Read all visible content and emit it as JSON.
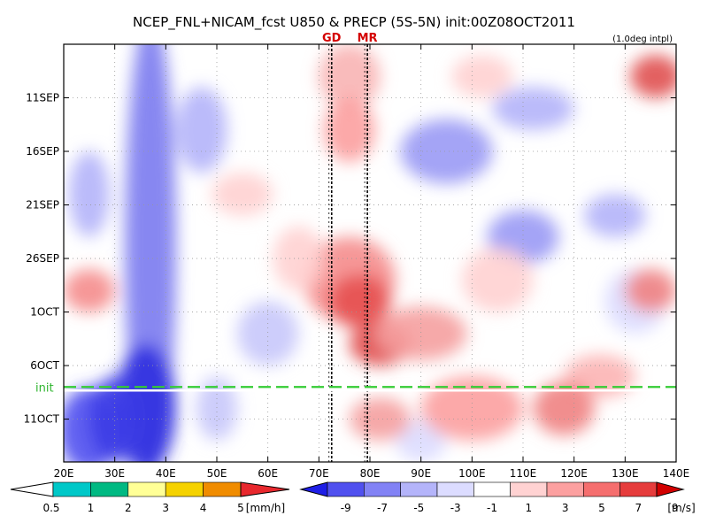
{
  "chart_data": {
    "type": "heatmap",
    "title": "NCEP_FNL+NICAM_fcst U850 & PRECP (5S-5N) init:00Z08OCT2011",
    "subtitle": "(1.0deg intpl)",
    "x_ticks": [
      "20E",
      "30E",
      "40E",
      "50E",
      "60E",
      "70E",
      "80E",
      "90E",
      "100E",
      "110E",
      "120E",
      "130E",
      "140E"
    ],
    "xlim": [
      20,
      140
    ],
    "y_ticks": [
      {
        "label": "11SEP",
        "day": 11
      },
      {
        "label": "16SEP",
        "day": 16
      },
      {
        "label": "21SEP",
        "day": 21
      },
      {
        "label": "26SEP",
        "day": 26
      },
      {
        "label": "1OCT",
        "day": 31
      },
      {
        "label": "6OCT",
        "day": 36
      },
      {
        "label": "11OCT",
        "day": 41
      }
    ],
    "ylim": [
      6,
      45
    ],
    "init_label": "init",
    "init_day": 38,
    "markers": [
      {
        "label": "GD",
        "lon": 72.5
      },
      {
        "label": "MR",
        "lon": 79.5
      }
    ],
    "precip_colorbar": {
      "unit": "[mm/h]",
      "labels": [
        "0.5",
        "1",
        "2",
        "3",
        "4",
        "5"
      ],
      "colors": [
        "#00c8c8",
        "#00b982",
        "#ffff96",
        "#f5d200",
        "#f08c00"
      ]
    },
    "u850_colorbar": {
      "unit": "[m/s]",
      "labels": [
        "-9",
        "-7",
        "-5",
        "-3",
        "-1",
        "1",
        "3",
        "5",
        "7",
        "9"
      ],
      "colors": [
        "#1e1ee6",
        "#5050ef",
        "#8282f5",
        "#b4b4fa",
        "#dcdcff",
        "#ffffff",
        "#ffd2d2",
        "#fca0a0",
        "#f56e6e",
        "#e63c3c",
        "#d20000"
      ]
    }
  }
}
